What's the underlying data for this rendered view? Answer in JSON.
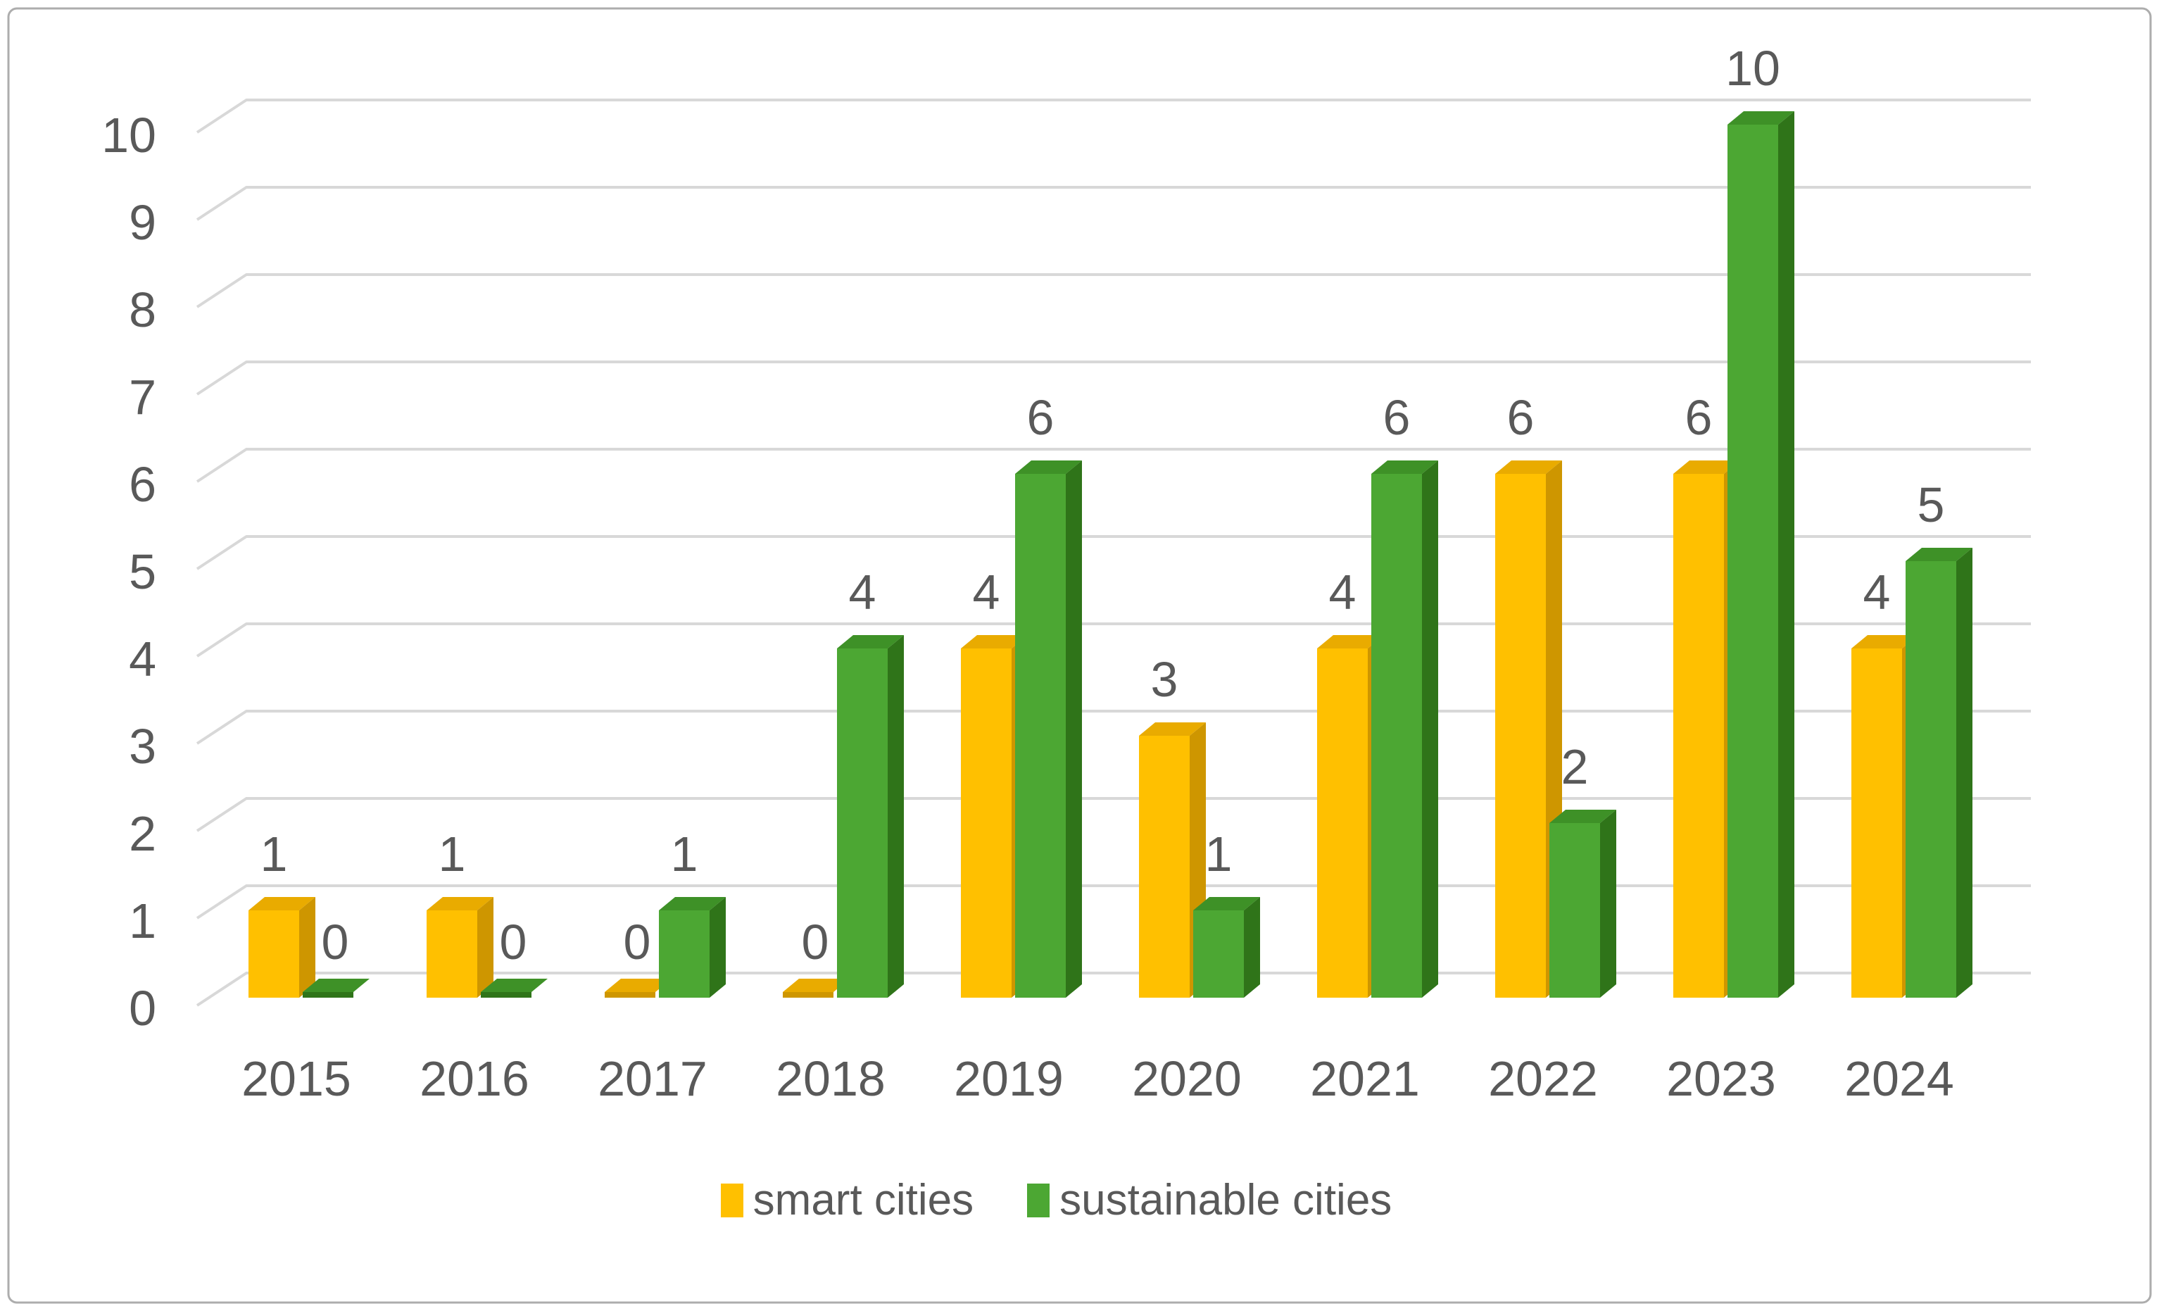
{
  "chart_data": {
    "type": "bar",
    "style": "3d-clustered-column",
    "title": "",
    "categories": [
      "2015",
      "2016",
      "2017",
      "2018",
      "2019",
      "2020",
      "2021",
      "2022",
      "2023",
      "2024"
    ],
    "series": [
      {
        "name": "smart cities",
        "color": "#FFC000",
        "color_top": "#E9AB00",
        "color_side": "#CE9600",
        "values": [
          1,
          1,
          0,
          0,
          4,
          3,
          4,
          6,
          6,
          4
        ]
      },
      {
        "name": "sustainable cities",
        "color": "#4CA733",
        "color_top": "#3E9127",
        "color_side": "#2F7419",
        "values": [
          0,
          0,
          1,
          4,
          6,
          1,
          6,
          2,
          10,
          5
        ]
      }
    ],
    "xlabel": "",
    "ylabel": "",
    "ylim": [
      0,
      10
    ],
    "yticks": [
      0,
      1,
      2,
      3,
      4,
      5,
      6,
      7,
      8,
      9,
      10
    ],
    "grid": "horizontal",
    "data_labels": true,
    "legend_position": "bottom",
    "text_color": "#595959",
    "gridline_color": "#D8D8D8",
    "border_color": "#ADADAD"
  }
}
